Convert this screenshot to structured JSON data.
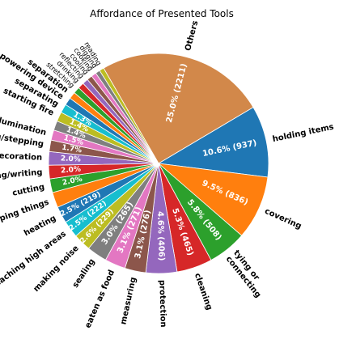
{
  "chart_data": {
    "type": "pie",
    "title": "Affordance of Presented Tools",
    "slices": [
      {
        "label": "Others",
        "value": 2211,
        "pct": "25.0%",
        "pct_label": "25.0%  (2211)",
        "color": "#d2884a"
      },
      {
        "label": "holding items",
        "value": 937,
        "pct": "10.6%",
        "pct_label": "10.6%  (937)",
        "color": "#1f77b4"
      },
      {
        "label": "covering",
        "value": 836,
        "pct": "9.5%",
        "pct_label": "9.5%  (836)",
        "color": "#ff7f0e"
      },
      {
        "label": "tying or\nconnecting",
        "value": 508,
        "pct": "5.8%",
        "pct_label": "5.8%  (508)",
        "color": "#2ca02c"
      },
      {
        "label": "cleaning",
        "value": 465,
        "pct": "5.3%",
        "pct_label": "5.3%  (465)",
        "color": "#d62728"
      },
      {
        "label": "protection",
        "value": 406,
        "pct": "4.6%",
        "pct_label": "4.6%  (406)",
        "color": "#9467bd"
      },
      {
        "label": "measuring",
        "value": 276,
        "pct": "3.1%",
        "pct_label": "3.1%  (276)",
        "color": "#8c564b"
      },
      {
        "label": "eaten as food",
        "value": 271,
        "pct": "3.1%",
        "pct_label": "3.1%  (271)",
        "color": "#e377c2"
      },
      {
        "label": "sealing",
        "value": 265,
        "pct": "3.0%",
        "pct_label": "3.0%  (265)",
        "color": "#7f7f7f"
      },
      {
        "label": "making noise",
        "value": 229,
        "pct": "2.6%",
        "pct_label": "2.6%  (229)",
        "color": "#bcbd22"
      },
      {
        "label": "reaching high areas",
        "value": 222,
        "pct": "2.5%",
        "pct_label": "2.5%  (222)",
        "color": "#17becf"
      },
      {
        "label": "heating",
        "value": 219,
        "pct": "2.5%",
        "pct_label": "2.5%  (219)",
        "color": "#1f77b4"
      },
      {
        "label": "gripping things",
        "value": 200,
        "pct": "2.3%",
        "pct_label": "",
        "color": "#ff7f0e"
      },
      {
        "label": "cutting",
        "value": 180,
        "pct": "2.0%",
        "pct_label": "2.0%",
        "color": "#2ca02c"
      },
      {
        "label": "drawing/writing",
        "value": 177,
        "pct": "2.0%",
        "pct_label": "2.0%",
        "color": "#d62728"
      },
      {
        "label": "decoration",
        "value": 177,
        "pct": "2.0%",
        "pct_label": "2.0%",
        "color": "#9467bd"
      },
      {
        "label": "sitting/stepping",
        "value": 150,
        "pct": "1.7%",
        "pct_label": "1.7%",
        "color": "#8c564b"
      },
      {
        "label": "illumination",
        "value": 133,
        "pct": "1.5%",
        "pct_label": "1.5%",
        "color": "#e377c2"
      },
      {
        "label": "",
        "value": 124,
        "pct": "1.4%",
        "pct_label": "1.4%",
        "color": "#7f7f7f"
      },
      {
        "label": "starting fire",
        "value": 124,
        "pct": "1.4%",
        "pct_label": "1.4%",
        "color": "#bcbd22"
      },
      {
        "label": "separating",
        "value": 115,
        "pct": "1.3%",
        "pct_label": "1.3%",
        "color": "#17becf"
      },
      {
        "label": "powering device",
        "value": 100,
        "pct": "",
        "pct_label": "",
        "color": "#1f77b4"
      },
      {
        "label": "separation",
        "value": 90,
        "pct": "",
        "pct_label": "",
        "color": "#ff7f0e"
      },
      {
        "label": "stretching",
        "value": 85,
        "pct": "",
        "pct_label": "",
        "color": "#2ca02c"
      },
      {
        "label": "drinking",
        "value": 80,
        "pct": "",
        "pct_label": "",
        "color": "#d62728"
      },
      {
        "label": "reflecting",
        "value": 75,
        "pct": "",
        "pct_label": "",
        "color": "#9467bd"
      },
      {
        "label": "cooling",
        "value": 70,
        "pct": "",
        "pct_label": "",
        "color": "#8c564b"
      },
      {
        "label": "cooking",
        "value": 65,
        "pct": "",
        "pct_label": "",
        "color": "#e377c2"
      },
      {
        "label": "digging",
        "value": 60,
        "pct": "",
        "pct_label": "",
        "color": "#7f7f7f"
      },
      {
        "label": "reading",
        "value": 60,
        "pct": "",
        "pct_label": "",
        "color": "#bcbd22"
      }
    ]
  }
}
